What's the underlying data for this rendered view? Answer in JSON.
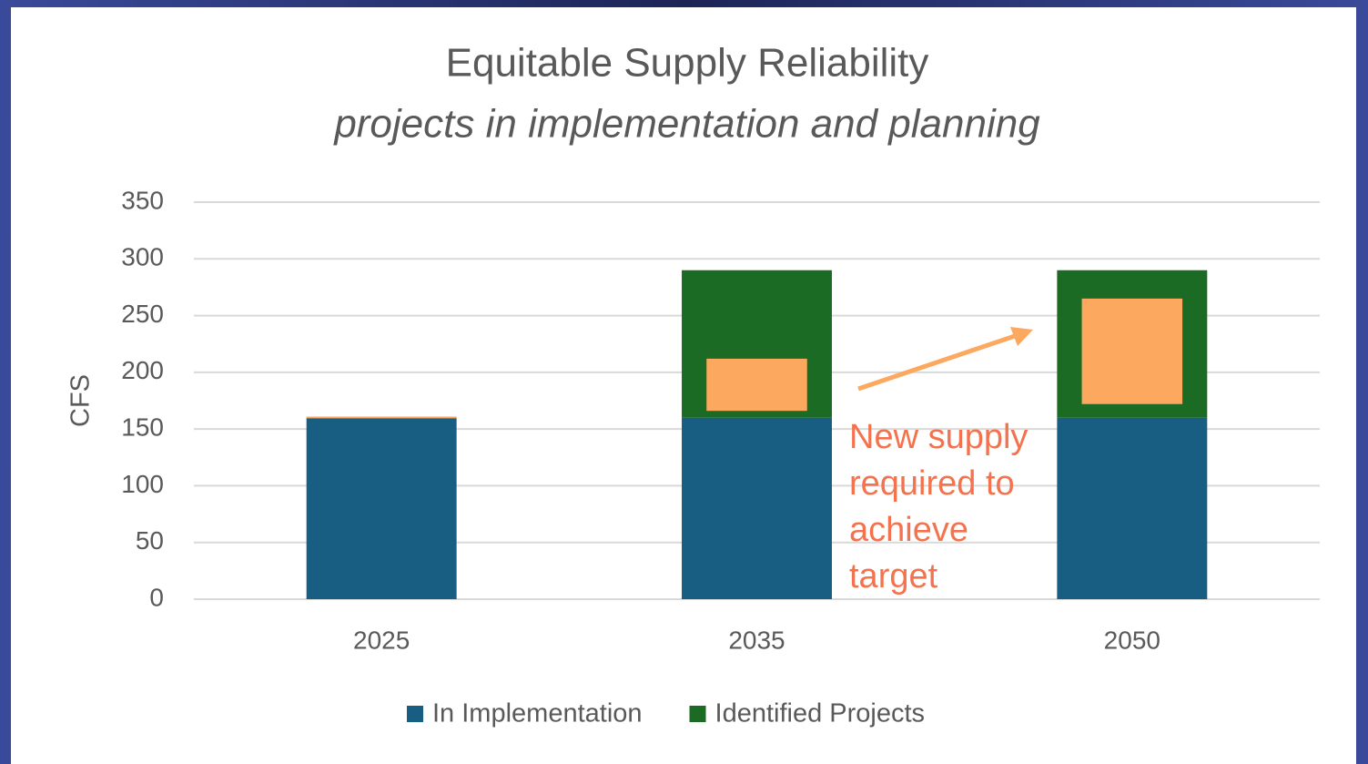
{
  "chart_data": {
    "type": "stacked_bar",
    "title": "Equitable Supply Reliability",
    "subtitle": "projects in implementation and planning",
    "y_label": "CFS",
    "categories": [
      "2025",
      "2035",
      "2050"
    ],
    "series": [
      {
        "name": "In Implementation",
        "color": "#175e82",
        "values": [
          160,
          160,
          160
        ]
      },
      {
        "name": "Identified Projects",
        "color": "#1b6b24",
        "values": [
          0,
          130,
          130
        ]
      }
    ],
    "range_boxes": {
      "color": "#fca85f",
      "ranges": [
        [
          160,
          161
        ],
        [
          166,
          212
        ],
        [
          172,
          265
        ]
      ]
    },
    "annotation": [
      "New supply",
      "required to",
      "achieve",
      "target"
    ],
    "annotation_color": "#f4734f",
    "ylim": [
      0,
      350
    ],
    "yticks": [
      0,
      50,
      100,
      150,
      200,
      250,
      300,
      350
    ],
    "grid": true,
    "legend": "bottom"
  }
}
